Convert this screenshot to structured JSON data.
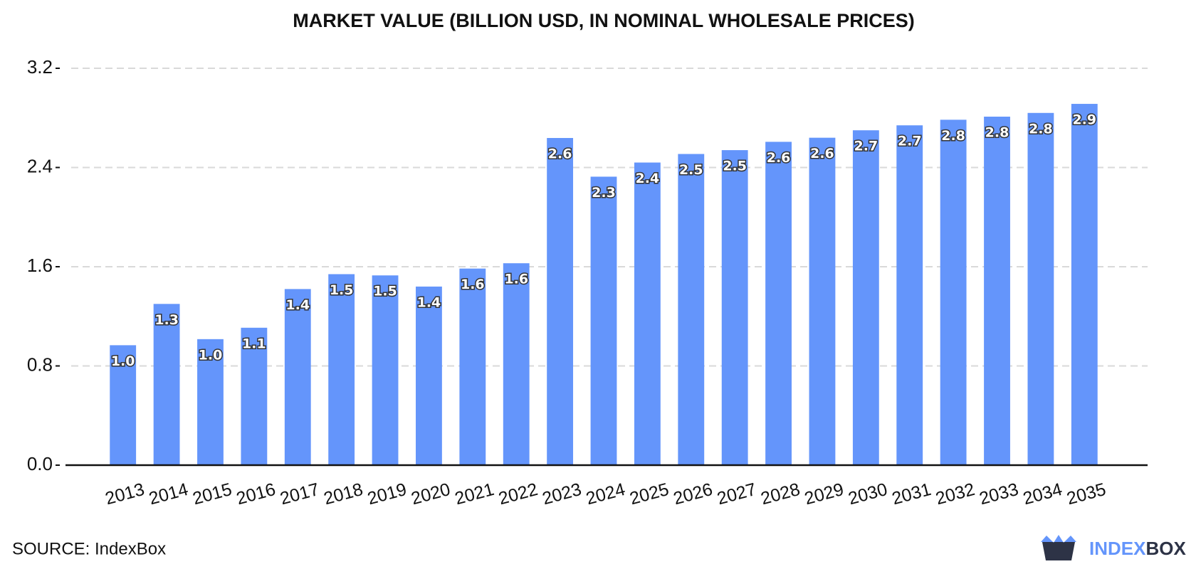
{
  "chart_data": {
    "type": "bar",
    "title": "MARKET VALUE (BILLION USD, IN NOMINAL WHOLESALE PRICES)",
    "categories": [
      "2013",
      "2014",
      "2015",
      "2016",
      "2017",
      "2018",
      "2019",
      "2020",
      "2021",
      "2022",
      "2023",
      "2024",
      "2025",
      "2026",
      "2027",
      "2028",
      "2029",
      "2030",
      "2031",
      "2032",
      "2033",
      "2034",
      "2035"
    ],
    "values": [
      0.967,
      1.3,
      1.016,
      1.108,
      1.42,
      1.54,
      1.53,
      1.44,
      1.585,
      1.628,
      2.638,
      2.326,
      2.44,
      2.509,
      2.54,
      2.607,
      2.64,
      2.7,
      2.74,
      2.785,
      2.81,
      2.84,
      2.913
    ],
    "value_labels": [
      "1.0",
      "1.3",
      "1.0",
      "1.1",
      "1.4",
      "1.5",
      "1.5",
      "1.4",
      "1.6",
      "1.6",
      "2.6",
      "2.3",
      "2.4",
      "2.5",
      "2.5",
      "2.6",
      "2.6",
      "2.7",
      "2.7",
      "2.8",
      "2.8",
      "2.8",
      "2.9"
    ],
    "color": "#6495fb",
    "ylim": [
      0,
      3.2
    ],
    "yticks": [
      {
        "value": 0,
        "label": "0.0"
      },
      0.8,
      1.6,
      2.4,
      3.2
    ],
    "grid": true,
    "source": "SOURCE: IndexBox"
  },
  "logo": {
    "part1": "INDEX",
    "part2": "BOX"
  }
}
